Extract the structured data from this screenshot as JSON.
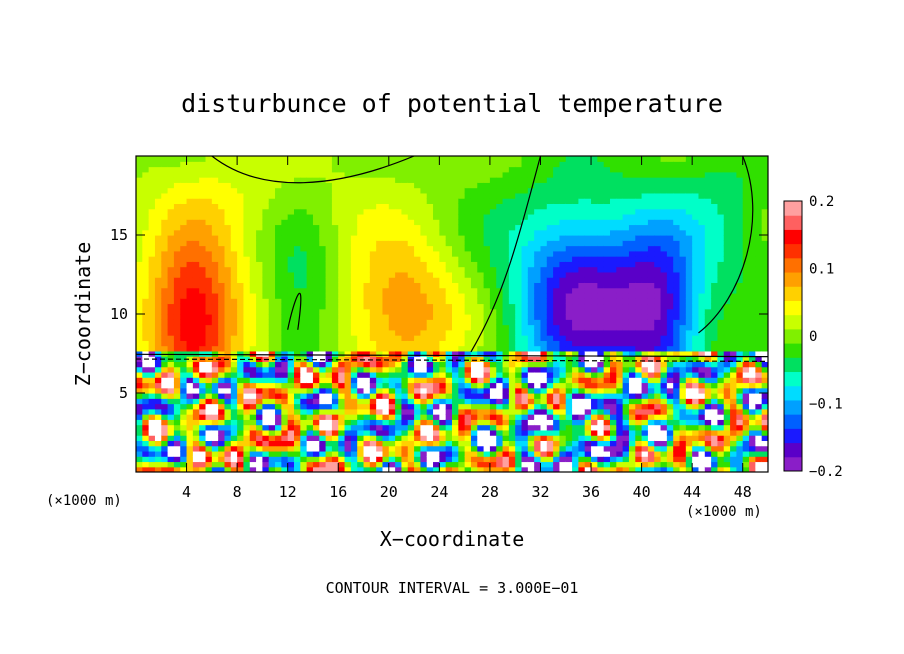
{
  "chart_data": {
    "type": "heatmap",
    "title": "disturbunce of potential temperature",
    "xlabel": "X−coordinate",
    "ylabel": "Z−coordinate",
    "x_unit_label": "(×1000 m)",
    "x_unit_label_right": "(×1000 m)",
    "xlim": [
      0,
      50
    ],
    "ylim": [
      0,
      20
    ],
    "x_ticks": [
      4,
      8,
      12,
      16,
      20,
      24,
      28,
      32,
      36,
      40,
      44,
      48
    ],
    "x_tick_labels": [
      "4",
      "8",
      "12",
      "16",
      "20",
      "24",
      "28",
      "32",
      "36",
      "40",
      "44",
      "48"
    ],
    "y_ticks": [
      5,
      10,
      15
    ],
    "y_tick_labels": [
      "5",
      "10",
      "15"
    ],
    "colorbar": {
      "range": [
        -0.2,
        0.2
      ],
      "tick_values": [
        0.2,
        0.1,
        0,
        -0.1,
        -0.2
      ],
      "tick_labels": [
        "0.2",
        "0.1",
        "0",
        "−0.1",
        "−0.2"
      ],
      "colors": [
        "#8a1ec8",
        "#5a00c8",
        "#1a1aff",
        "#0060ff",
        "#00a0ff",
        "#00dcff",
        "#00ffc8",
        "#00e060",
        "#30e000",
        "#80f000",
        "#c8ff00",
        "#ffff00",
        "#ffd000",
        "#ffa000",
        "#ff7000",
        "#ff3000",
        "#ff0000",
        "#ff6060",
        "#ffa0a0"
      ]
    },
    "contour_interval_label": "CONTOUR INTERVAL = 3.000E−01",
    "notes": "Upper layer (z > 7.5): warm maxima near x=4 and x=21, cold minima near x=35 and x=41; lower layer shows small-scale noisy structure"
  }
}
